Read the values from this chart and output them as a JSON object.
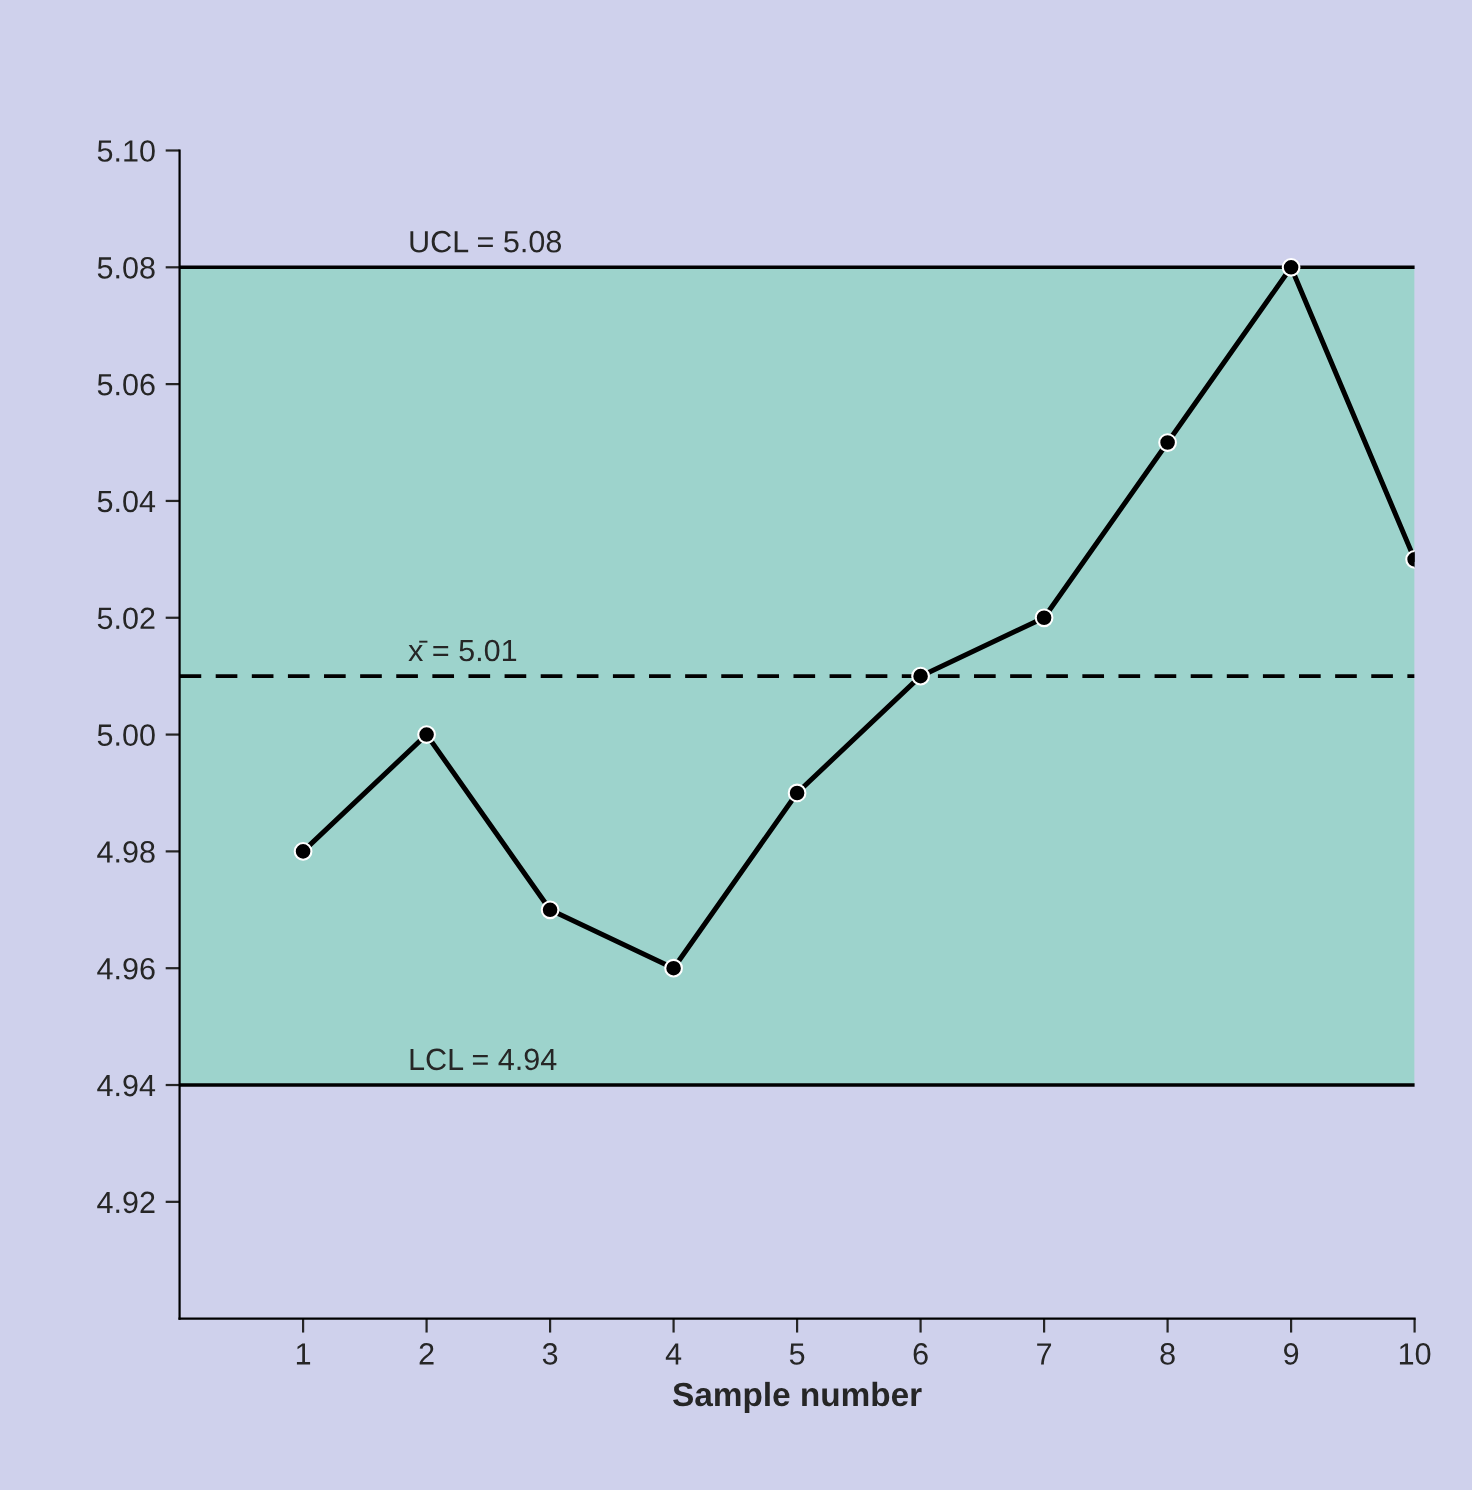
{
  "chart_data": {
    "type": "line",
    "xlabel": "Sample number",
    "x": [
      1,
      2,
      3,
      4,
      5,
      6,
      7,
      8,
      9,
      10
    ],
    "series": [
      {
        "color": "#000000",
        "values": [
          4.98,
          5.0,
          4.97,
          4.96,
          4.99,
          5.01,
          5.02,
          5.05,
          5.08,
          5.03
        ]
      }
    ],
    "xlim": [
      0,
      10
    ],
    "xticks": [
      1,
      2,
      3,
      4,
      5,
      6,
      7,
      8,
      9,
      10
    ],
    "ylim": [
      4.9,
      5.1
    ],
    "yticks": [
      {
        "value": 4.92,
        "label": "4.92"
      },
      {
        "value": 4.94,
        "label": "4.94"
      },
      {
        "value": 4.96,
        "label": "4.96"
      },
      {
        "value": 4.98,
        "label": "4.98"
      },
      {
        "value": 5.0,
        "label": "5.00"
      },
      {
        "value": 5.02,
        "label": "5.02"
      },
      {
        "value": 5.04,
        "label": "5.04"
      },
      {
        "value": 5.06,
        "label": "5.06"
      },
      {
        "value": 5.08,
        "label": "5.08"
      },
      {
        "value": 5.1,
        "label": "5.10"
      }
    ],
    "ref_lines": [
      {
        "axis": "y",
        "value": 5.08,
        "label": "UCL = 5.08",
        "color": "#000000",
        "line_style": "solid"
      },
      {
        "axis": "y",
        "value": 5.01,
        "label": "x̄ = 5.01",
        "color": "#000000",
        "line_style": "dashed"
      },
      {
        "axis": "y",
        "value": 4.94,
        "label": "LCL = 4.94",
        "color": "#000000",
        "line_style": "solid"
      }
    ],
    "bands": [
      {
        "axis": "y",
        "from": 4.94,
        "to": 5.08,
        "color": "#9dd3cc"
      }
    ],
    "marker": "circle",
    "line_style": "solid",
    "grid": false
  }
}
